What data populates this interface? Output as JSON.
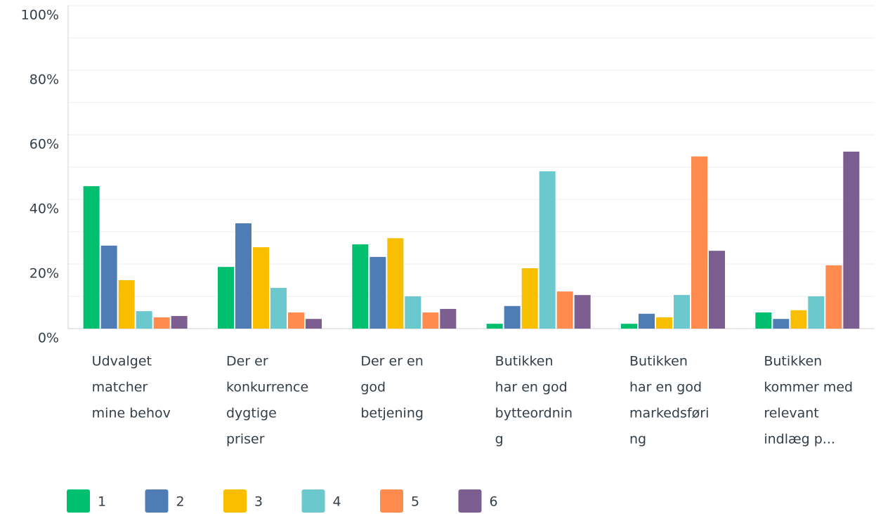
{
  "chart_data": {
    "type": "bar",
    "categories": [
      [
        "Udvalget",
        "matcher",
        "mine behov"
      ],
      [
        "Der er",
        "konkurrence",
        "dygtige",
        "priser"
      ],
      [
        "Der er en",
        "god",
        "betjening"
      ],
      [
        "Butikken",
        "har en god",
        "bytteordnin",
        "g"
      ],
      [
        "Butikken",
        "har en god",
        "markedsføri",
        "ng"
      ],
      [
        "Butikken",
        "kommer med",
        "relevant",
        "indlæg p..."
      ]
    ],
    "series": [
      {
        "name": "1",
        "color": "#00bf6f",
        "values": [
          44.1,
          19.1,
          26.1,
          1.5,
          1.5,
          5
        ]
      },
      {
        "name": "2",
        "color": "#507cb6",
        "values": [
          25.7,
          32.6,
          22.2,
          7,
          4.6,
          3
        ]
      },
      {
        "name": "3",
        "color": "#f9be00",
        "values": [
          15,
          25.2,
          28,
          18.7,
          3.5,
          5.7
        ]
      },
      {
        "name": "4",
        "color": "#6bc8cd",
        "values": [
          5.4,
          12.6,
          10,
          48.7,
          10.4,
          10
        ]
      },
      {
        "name": "5",
        "color": "#ff8b4f",
        "values": [
          3.5,
          5,
          5,
          11.5,
          53.3,
          19.6
        ]
      },
      {
        "name": "6",
        "color": "#7d5e90",
        "values": [
          3.9,
          3,
          6.1,
          10.4,
          24.1,
          54.8
        ]
      }
    ],
    "ylim": [
      0,
      100
    ],
    "yticks": [
      {
        "value": 0,
        "label": "0%"
      },
      {
        "value": 20,
        "label": "20%"
      },
      {
        "value": 40,
        "label": "40%"
      },
      {
        "value": 60,
        "label": "60%"
      },
      {
        "value": 80,
        "label": "80%"
      },
      {
        "value": 100,
        "label": "100%"
      }
    ],
    "minor_yticks": [
      10,
      30,
      50,
      70,
      90
    ],
    "grid": true,
    "legend": "bottom-left"
  }
}
